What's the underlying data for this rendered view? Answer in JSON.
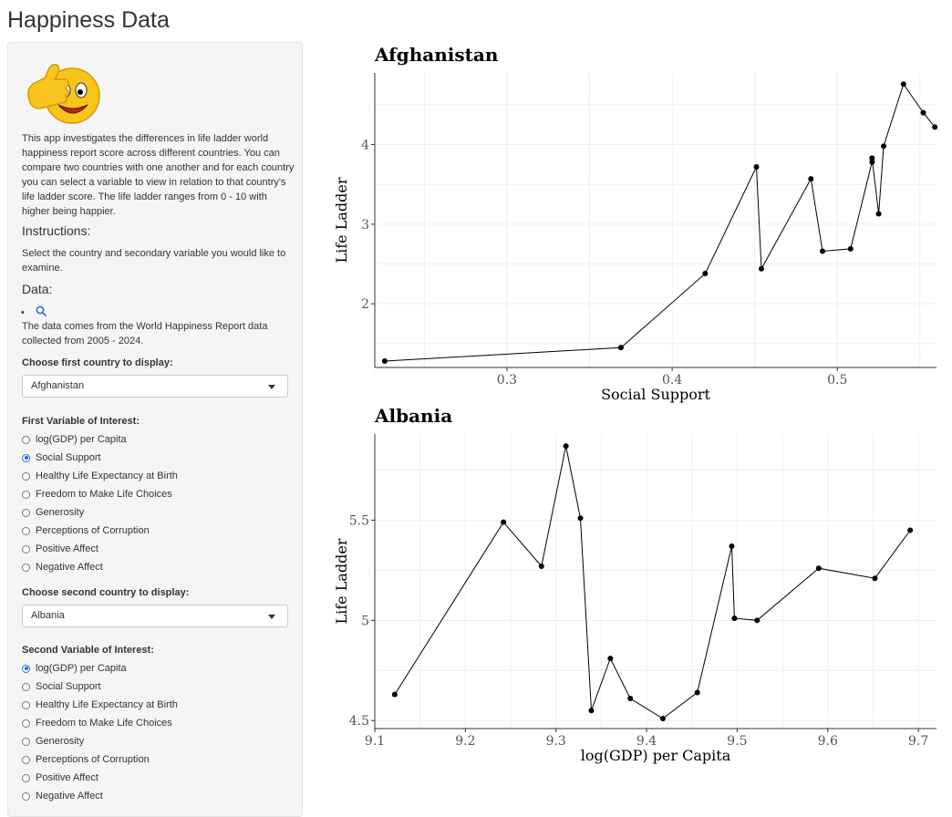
{
  "app": {
    "title": "Happiness Data"
  },
  "sidebar": {
    "logo_icon": "thumbs-up-smiley-icon",
    "description": "This app investigates the differences in life ladder world happiness report score across different countries. You can compare two countries with one another and for each country you can select a variable to view in relation to that country's life ladder score. The life ladder ranges from 0 - 10 with higher being happier.",
    "instructions_heading": "Instructions:",
    "instructions_text": "Select the country and secondary variable you would like to examine.",
    "data_heading": "Data:",
    "data_link_icon": "search-icon",
    "data_text": "The data comes from the World Happiness Report data collected from 2005 - 2024.",
    "country1": {
      "label": "Choose first country to display:",
      "selected": "Afghanistan"
    },
    "variable1": {
      "label": "First Variable of Interest:",
      "options": [
        "log(GDP) per Capita",
        "Social Support",
        "Healthy Life Expectancy at Birth",
        "Freedom to Make Life Choices",
        "Generosity",
        "Perceptions of Corruption",
        "Positive Affect",
        "Negative Affect"
      ],
      "selected_index": 1
    },
    "country2": {
      "label": "Choose second country to display:",
      "selected": "Albania"
    },
    "variable2": {
      "label": "Second Variable of Interest:",
      "options": [
        "log(GDP) per Capita",
        "Social Support",
        "Healthy Life Expectancy at Birth",
        "Freedom to Make Life Choices",
        "Generosity",
        "Perceptions of Corruption",
        "Positive Affect",
        "Negative Affect"
      ],
      "selected_index": 0
    }
  },
  "chart_data": [
    {
      "type": "line",
      "title": "Afghanistan",
      "xlabel": "Social Support",
      "ylabel": "Life Ladder",
      "xlim": [
        0.22,
        0.56
      ],
      "ylim": [
        1.2,
        4.9
      ],
      "xticks": [
        0.3,
        0.4,
        0.5
      ],
      "yticks": [
        2,
        3,
        4
      ],
      "grid": true,
      "points": [
        {
          "x": 0.226,
          "y": 1.28
        },
        {
          "x": 0.369,
          "y": 1.45
        },
        {
          "x": 0.42,
          "y": 2.38
        },
        {
          "x": 0.451,
          "y": 3.72
        },
        {
          "x": 0.454,
          "y": 2.44
        },
        {
          "x": 0.484,
          "y": 3.57
        },
        {
          "x": 0.491,
          "y": 2.66
        },
        {
          "x": 0.508,
          "y": 2.69
        },
        {
          "x": 0.521,
          "y": 3.78
        },
        {
          "x": 0.521,
          "y": 3.83
        },
        {
          "x": 0.525,
          "y": 3.13
        },
        {
          "x": 0.528,
          "y": 3.98
        },
        {
          "x": 0.54,
          "y": 4.76
        },
        {
          "x": 0.552,
          "y": 4.4
        },
        {
          "x": 0.559,
          "y": 4.22
        }
      ]
    },
    {
      "type": "line",
      "title": "Albania",
      "xlabel": "log(GDP) per Capita",
      "ylabel": "Life Ladder",
      "xlim": [
        9.1,
        9.72
      ],
      "ylim": [
        4.46,
        5.93
      ],
      "xticks": [
        9.1,
        9.2,
        9.3,
        9.4,
        9.5,
        9.6,
        9.7
      ],
      "yticks": [
        4.5,
        5.0,
        5.5
      ],
      "grid": true,
      "points": [
        {
          "x": 9.122,
          "y": 4.63
        },
        {
          "x": 9.242,
          "y": 5.49
        },
        {
          "x": 9.284,
          "y": 5.27
        },
        {
          "x": 9.311,
          "y": 5.87
        },
        {
          "x": 9.327,
          "y": 5.51
        },
        {
          "x": 9.339,
          "y": 4.55
        },
        {
          "x": 9.36,
          "y": 4.81
        },
        {
          "x": 9.382,
          "y": 4.61
        },
        {
          "x": 9.418,
          "y": 4.51
        },
        {
          "x": 9.456,
          "y": 4.64
        },
        {
          "x": 9.494,
          "y": 5.37
        },
        {
          "x": 9.497,
          "y": 5.01
        },
        {
          "x": 9.522,
          "y": 5.0
        },
        {
          "x": 9.59,
          "y": 5.26
        },
        {
          "x": 9.652,
          "y": 5.21
        },
        {
          "x": 9.691,
          "y": 5.45
        }
      ]
    }
  ]
}
